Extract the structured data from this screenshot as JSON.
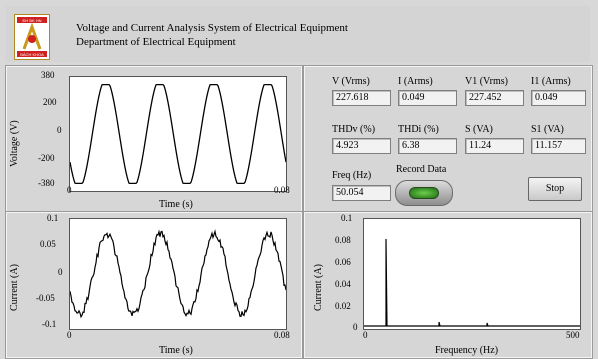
{
  "header": {
    "title": "Voltage and Current Analysis System of Electrical Equipment",
    "subtitle": "Department of Electrical Equipment",
    "logo_label": "BÁCH KHOA",
    "logo_top_text": "ĐH BK HN"
  },
  "voltage_plot": {
    "y_ticks": [
      "380",
      "200",
      "0",
      "-200",
      "-380"
    ],
    "x_ticks": [
      "0",
      "0.08"
    ],
    "y_label": "Voltage (V)",
    "x_label": "Time (s)"
  },
  "current_plot": {
    "y_ticks": [
      "0.1",
      "0.05",
      "0",
      "-0.05",
      "-0.1"
    ],
    "x_ticks": [
      "0",
      "0.08"
    ],
    "y_label": "Current (A)",
    "x_label": "Time (s)"
  },
  "spectrum_plot": {
    "y_ticks": [
      "0.1",
      "0.08",
      "0.06",
      "0.04",
      "0.02",
      "0"
    ],
    "x_ticks": [
      "0",
      "500"
    ],
    "y_label": "Current (A)",
    "x_label": "Frequency (Hz)"
  },
  "measurements": {
    "v_label": "V (Vrms)",
    "v_value": "227.618",
    "i_label": "I (Arms)",
    "i_value": "0.049",
    "v1_label": "V1 (Vrms)",
    "v1_value": "227.452",
    "i1_label": "I1 (Arms)",
    "i1_value": "0.049",
    "thdv_label": "THDv (%)",
    "thdv_value": "4.923",
    "thdi_label": "THDi (%)",
    "thdi_value": "6.38",
    "s_label": "S (VA)",
    "s_value": "11.24",
    "s1_label": "S1 (VA)",
    "s1_value": "11.157",
    "freq_label": "Freq (Hz)",
    "freq_value": "50.054"
  },
  "controls": {
    "record_label": "Record Data",
    "stop_label": "Stop"
  },
  "colors": {
    "trace": "#000000",
    "plot_bg": "#ffffff",
    "panel_bg": "#d6d6d6",
    "record_led": "#3a9a28"
  }
}
